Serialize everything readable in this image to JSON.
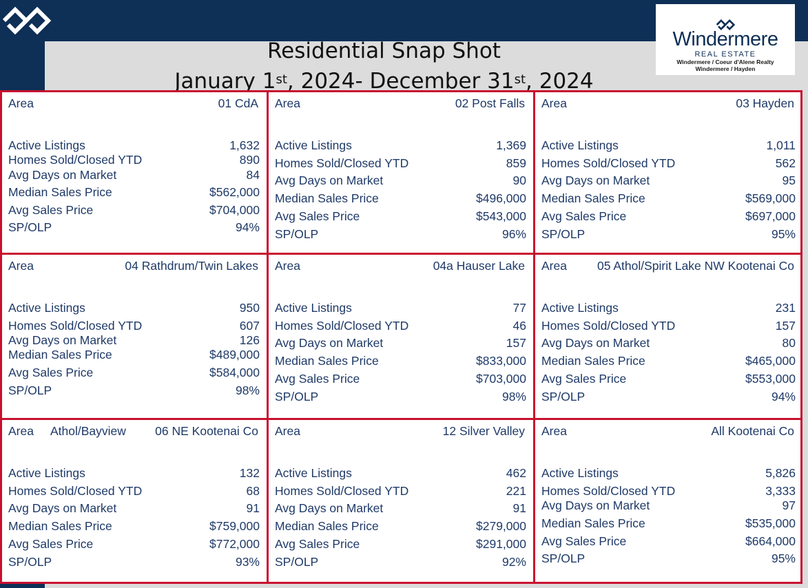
{
  "title": {
    "line1": "Residential Snap Shot",
    "start_month": "January 1",
    "start_sup": "st",
    "mid": ", 2024- December 31",
    "end_sup": "st",
    "year_end": ", 2024"
  },
  "logo": {
    "brand": "Windermere",
    "subtitle": "REAL ESTATE",
    "line1": "Windermere / Coeur d'Alene Realty",
    "line2": "Windermere / Hayden"
  },
  "labels": {
    "area": "Area",
    "active": "Active Listings",
    "sold": "Homes Sold/Closed YTD",
    "days": "Avg Days on Market",
    "median": "Median Sales Price",
    "avg": "Avg Sales Price",
    "spolp": "SP/OLP"
  },
  "areas": [
    {
      "name": "01 CdA",
      "extra": "",
      "active": "1,632",
      "sold": "890",
      "days": "84",
      "median": "$562,000",
      "avg": "$704,000",
      "spolp": "94%"
    },
    {
      "name": "02 Post Falls",
      "extra": "",
      "active": "1,369",
      "sold": "859",
      "days": "90",
      "median": "$496,000",
      "avg": "$543,000",
      "spolp": "96%"
    },
    {
      "name": "03 Hayden",
      "extra": "",
      "active": "1,011",
      "sold": "562",
      "days": "95",
      "median": "$569,000",
      "avg": "$697,000",
      "spolp": "95%"
    },
    {
      "name": "04 Rathdrum/Twin Lakes",
      "extra": "",
      "active": "950",
      "sold": "607",
      "days": "126",
      "median": "$489,000",
      "avg": "$584,000",
      "spolp": "98%"
    },
    {
      "name": "04a  Hauser Lake",
      "extra": "",
      "active": "77",
      "sold": "46",
      "days": "157",
      "median": "$833,000",
      "avg": "$703,000",
      "spolp": "98%"
    },
    {
      "name": "05 Athol/Spirit Lake NW Kootenai Co",
      "extra": "",
      "active": "231",
      "sold": "157",
      "days": "80",
      "median": "$465,000",
      "avg": "$553,000",
      "spolp": "94%"
    },
    {
      "name": "06 NE Kootenai Co",
      "extra": "Athol/Bayview",
      "active": "132",
      "sold": "68",
      "days": "91",
      "median": "$759,000",
      "avg": "$772,000",
      "spolp": "93%"
    },
    {
      "name": "12 Silver Valley",
      "extra": "",
      "active": "462",
      "sold": "221",
      "days": "91",
      "median": "$279,000",
      "avg": "$291,000",
      "spolp": "92%"
    },
    {
      "name": "All Kootenai Co",
      "extra": "",
      "active": "5,826",
      "sold": "3,333",
      "days": "97",
      "median": "$535,000",
      "avg": "$664,000",
      "spolp": "95%"
    }
  ]
}
